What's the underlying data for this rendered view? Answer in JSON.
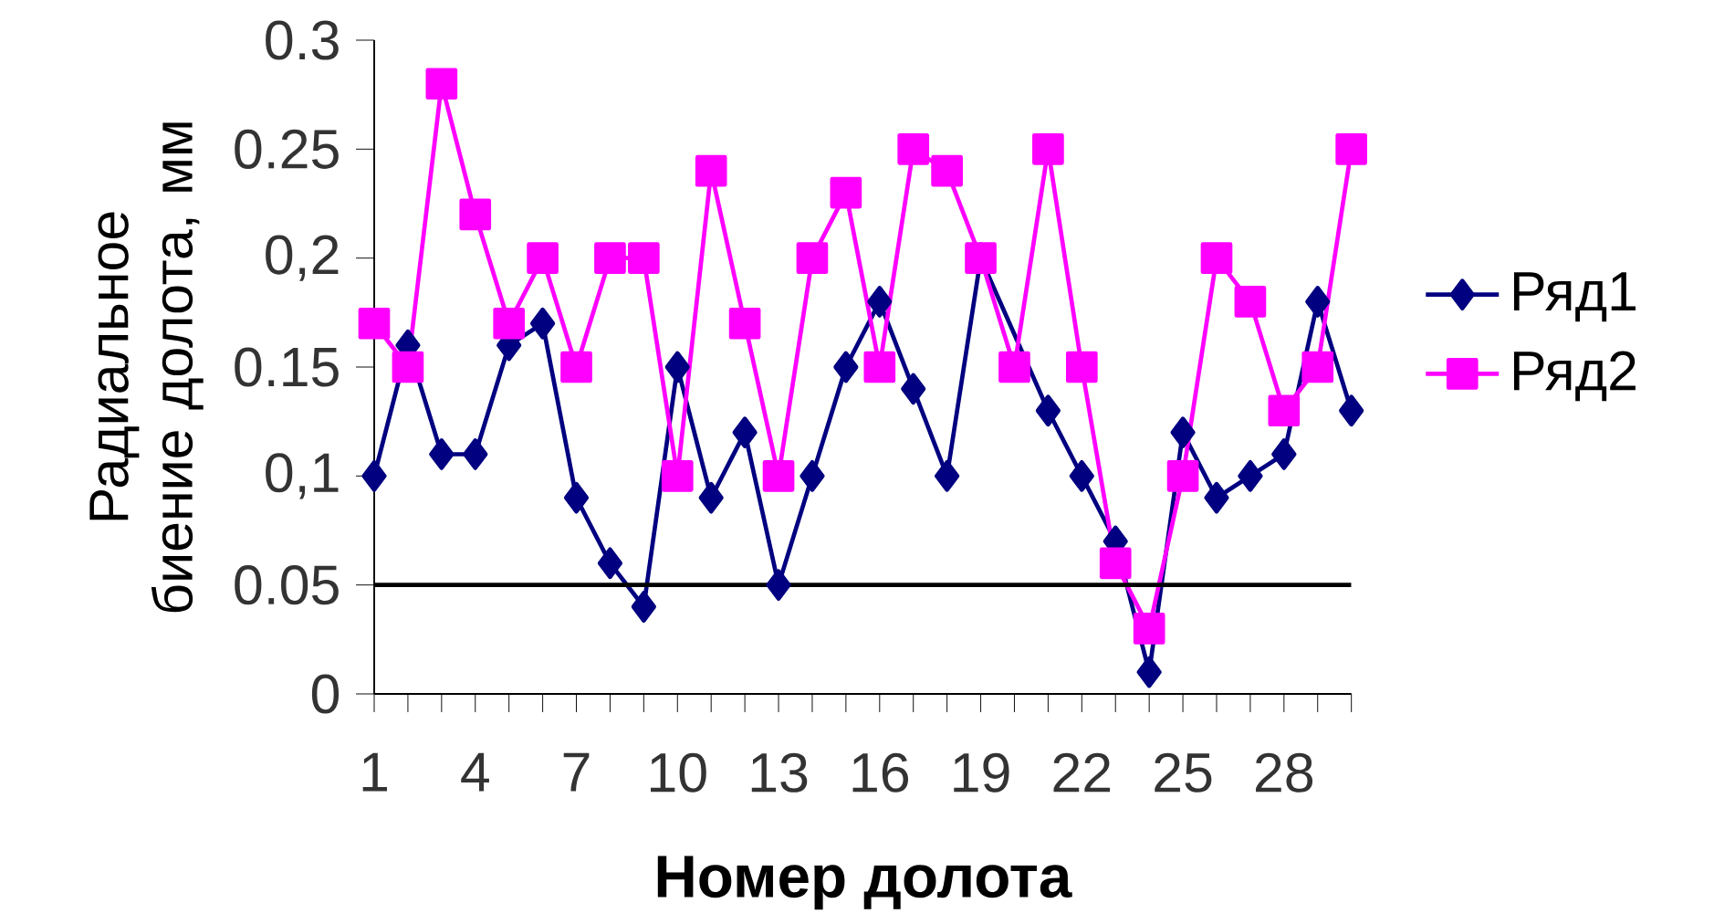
{
  "chart_data": {
    "type": "line",
    "xlabel": "Номер долота",
    "ylabel": "Радиальное биение долота, мм",
    "categories": [
      "1",
      null,
      null,
      "4",
      null,
      null,
      "7",
      null,
      null,
      "10",
      null,
      null,
      "13",
      null,
      null,
      "16",
      null,
      null,
      "19",
      null,
      null,
      "22",
      null,
      null,
      "25",
      null,
      null,
      "28",
      null,
      null
    ],
    "series": [
      {
        "name": "Ряд1",
        "color": "#000080",
        "marker": "diamond",
        "values": [
          0.1,
          0.16,
          0.11,
          0.11,
          0.16,
          0.17,
          0.09,
          0.06,
          0.04,
          0.15,
          0.09,
          0.12,
          0.05,
          0.1,
          0.15,
          0.18,
          0.14,
          0.1,
          0.2,
          null,
          0.13,
          0.1,
          0.07,
          0.01,
          0.12,
          0.09,
          0.1,
          0.11,
          0.18,
          0.13
        ]
      },
      {
        "name": "Ряд2",
        "color": "#ff00ff",
        "marker": "square",
        "values": [
          0.17,
          0.15,
          0.28,
          0.22,
          0.17,
          0.2,
          0.15,
          0.2,
          0.2,
          0.1,
          0.24,
          0.17,
          0.1,
          0.2,
          0.23,
          0.15,
          0.25,
          0.24,
          0.2,
          0.15,
          0.25,
          0.15,
          0.06,
          0.03,
          0.1,
          0.2,
          0.18,
          0.13,
          0.15,
          0.25
        ]
      }
    ],
    "ylim": [
      0,
      0.3
    ],
    "yticks": [
      0,
      {
        "value": 0.05,
        "label": "0.05"
      },
      {
        "value": 0.1,
        "label": "0,1"
      },
      {
        "value": 0.15,
        "label": "0.15"
      },
      {
        "value": 0.2,
        "label": "0,2"
      },
      {
        "value": 0.25,
        "label": "0.25"
      },
      {
        "value": 0.3,
        "label": "0.3"
      }
    ],
    "ref_lines": [
      {
        "axis": "y",
        "value": 0.05,
        "color": "#000000"
      }
    ],
    "legend": "right",
    "grid": false,
    "line_style": "solid"
  }
}
